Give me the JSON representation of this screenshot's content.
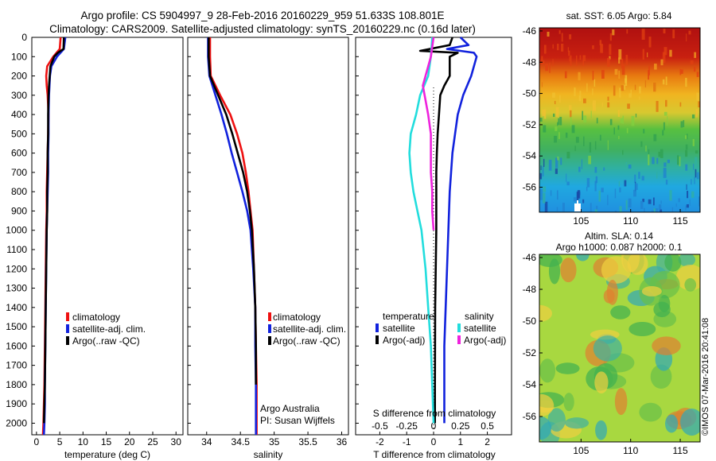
{
  "header": {
    "line1": "Argo profile: CS 5904997_9 28-Feb-2016 20160229_959 51.633S 108.801E",
    "line2": "Climatology: CARS2009. Satellite-adjusted climatology: synTS_20160229.nc (0.16d later)"
  },
  "colors": {
    "climatology": "#ee1111",
    "satellite": "#1122dd",
    "argo": "#000000",
    "s_satellite": "#22dddd",
    "s_argo": "#ee22dd"
  },
  "depth_axis": {
    "ticks": [
      0,
      100,
      200,
      300,
      400,
      500,
      600,
      700,
      800,
      900,
      1000,
      1100,
      1200,
      1300,
      1400,
      1500,
      1600,
      1700,
      1800,
      1900,
      2000
    ],
    "range": [
      0,
      2060
    ]
  },
  "legend": {
    "climatology": "climatology",
    "satellite_adj": "satellite-adj. clim.",
    "argo_raw_qc": "Argo(..raw -QC)",
    "temperature": "temperature",
    "salinity": "salinity",
    "satellite": "satellite",
    "argo_adj": "Argo(-adj)"
  },
  "credits": {
    "line1": "Argo Australia",
    "line2": "PI: Susan Wijffels",
    "imos": "©IMOS 07-Mar-2016 20:41:08"
  },
  "chart_data": [
    {
      "type": "line",
      "panel": "temperature",
      "xlabel": "temperature (deg C)",
      "ylabel": "",
      "xlim": [
        -1,
        31.5
      ],
      "xticks": [
        0,
        5,
        10,
        15,
        20,
        25,
        30
      ],
      "ylim": [
        2060,
        0
      ],
      "series": [
        {
          "name": "climatology",
          "color_key": "climatology",
          "x": [
            5.2,
            5.0,
            3.6,
            2.3,
            2.1,
            2.2,
            2.4,
            2.6,
            2.5,
            2.4,
            2.3,
            2.2,
            2.2,
            2.1,
            2.0,
            1.9,
            1.8,
            1.7,
            1.6,
            1.5,
            1.4
          ],
          "y": [
            0,
            60,
            100,
            150,
            200,
            250,
            300,
            400,
            500,
            600,
            700,
            800,
            900,
            1000,
            1200,
            1400,
            1600,
            1800,
            1900,
            2000,
            2060
          ]
        },
        {
          "name": "satellite-adj. clim.",
          "color_key": "satellite",
          "x": [
            6.2,
            5.9,
            4.4,
            3.2,
            2.9,
            2.8,
            2.7,
            2.6,
            2.6,
            2.5,
            2.5,
            2.4,
            2.3,
            2.2,
            2.1,
            2.0,
            1.9,
            1.8,
            1.8,
            1.7,
            1.6
          ],
          "y": [
            0,
            60,
            100,
            150,
            200,
            250,
            300,
            400,
            500,
            600,
            700,
            800,
            900,
            1000,
            1200,
            1400,
            1600,
            1800,
            1900,
            2000,
            2060
          ]
        },
        {
          "name": "Argo(..raw -QC)",
          "color_key": "argo",
          "x": [
            5.9,
            5.8,
            4.6,
            3.8,
            3.0,
            2.7,
            2.6,
            2.5,
            2.5,
            2.4,
            2.4,
            2.3,
            2.3,
            2.2,
            2.1,
            2.0,
            1.9,
            1.8,
            1.7,
            1.6
          ],
          "y": [
            0,
            60,
            80,
            100,
            150,
            250,
            300,
            400,
            500,
            600,
            700,
            800,
            900,
            1000,
            1200,
            1400,
            1600,
            1800,
            1900,
            2000
          ]
        }
      ]
    },
    {
      "type": "line",
      "panel": "salinity",
      "xlabel": "salinity",
      "ylabel": "",
      "xlim": [
        33.72,
        36.1
      ],
      "xticks": [
        34,
        34.5,
        35,
        35.5,
        36
      ],
      "ylim": [
        2060,
        0
      ],
      "series": [
        {
          "name": "climatology",
          "color_key": "climatology",
          "x": [
            34.05,
            34.05,
            34.06,
            34.2,
            34.35,
            34.45,
            34.53,
            34.58,
            34.62,
            34.65,
            34.68,
            34.7,
            34.72,
            34.73,
            34.74,
            34.74
          ],
          "y": [
            0,
            100,
            200,
            300,
            400,
            500,
            600,
            700,
            800,
            900,
            1000,
            1200,
            1400,
            1600,
            1800,
            2060
          ]
        },
        {
          "name": "satellite-adj. clim.",
          "color_key": "satellite",
          "x": [
            34.02,
            34.02,
            34.04,
            34.13,
            34.22,
            34.3,
            34.37,
            34.45,
            34.53,
            34.6,
            34.65,
            34.69,
            34.72,
            34.72,
            34.73,
            34.73
          ],
          "y": [
            0,
            100,
            200,
            300,
            400,
            500,
            600,
            700,
            800,
            900,
            1000,
            1200,
            1400,
            1600,
            1800,
            2060
          ]
        },
        {
          "name": "Argo(..raw -QC)",
          "color_key": "argo",
          "x": [
            34.03,
            34.03,
            34.05,
            34.17,
            34.29,
            34.38,
            34.46,
            34.54,
            34.6,
            34.64,
            34.67,
            34.7,
            34.72,
            34.73,
            34.73
          ],
          "y": [
            0,
            100,
            200,
            300,
            400,
            500,
            600,
            700,
            800,
            900,
            1000,
            1200,
            1400,
            1600,
            1800
          ]
        }
      ]
    },
    {
      "type": "line",
      "panel": "difference",
      "xlabel": "T difference from climatology",
      "xlabel_top": "S difference from climatology",
      "xlim": [
        -2.9,
        2.9
      ],
      "xticks": [
        -2,
        -1,
        0,
        1,
        2
      ],
      "xticks_S": [
        -0.5,
        -0.25,
        0,
        0.25,
        0.5
      ],
      "ylim": [
        2060,
        0
      ],
      "series": [
        {
          "name": "temperature satellite",
          "color_key": "satellite",
          "x": [
            1.0,
            1.3,
            0.5,
            1.5,
            1.6,
            1.4,
            1.1,
            0.9,
            0.8,
            0.7,
            0.65,
            0.6,
            0.55,
            0.5,
            0.45,
            0.4,
            0.4,
            0.4
          ],
          "y": [
            0,
            40,
            60,
            80,
            100,
            200,
            300,
            400,
            500,
            600,
            700,
            800,
            1000,
            1200,
            1400,
            1600,
            1800,
            2000
          ]
        },
        {
          "name": "temperature Argo(-adj)",
          "color_key": "argo",
          "x": [
            0.7,
            0.6,
            -0.5,
            0.9,
            0.6,
            0.6,
            0.4,
            0.25,
            0.2,
            0.15,
            0.12,
            0.1,
            0.1,
            0.1,
            0.08,
            0.06,
            0.05,
            0.05
          ],
          "y": [
            0,
            40,
            70,
            80,
            100,
            200,
            250,
            300,
            400,
            500,
            600,
            700,
            800,
            1000,
            1200,
            1400,
            1800,
            2000
          ]
        },
        {
          "name": "salinity satellite",
          "color_key": "s_satellite",
          "x": [
            -0.05,
            -0.1,
            -0.2,
            -0.5,
            -0.65,
            -0.85,
            -0.9,
            -0.85,
            -0.75,
            -0.6,
            -0.45,
            -0.3,
            -0.2,
            -0.1,
            -0.05,
            0.0
          ],
          "y": [
            0,
            100,
            200,
            300,
            400,
            500,
            600,
            700,
            800,
            900,
            1000,
            1200,
            1400,
            1600,
            1800,
            2000
          ]
        },
        {
          "name": "salinity Argo(-adj)",
          "color_key": "s_argo",
          "x": [
            0.0,
            -0.1,
            -0.4,
            -0.2,
            -0.1,
            -0.1,
            -0.1,
            -0.05,
            -0.05,
            0.0
          ],
          "y": [
            0,
            100,
            250,
            400,
            500,
            600,
            700,
            800,
            900,
            1000
          ]
        }
      ]
    },
    {
      "type": "heatmap",
      "panel": "sst_map",
      "title": "sat. SST: 6.05  Argo: 5.84",
      "xticks": [
        105,
        110,
        115
      ],
      "yticks": [
        -46,
        -48,
        -50,
        -52,
        -54,
        -56
      ],
      "xlim": [
        100.8,
        117
      ],
      "ylim": [
        -57.6,
        -45.8
      ]
    },
    {
      "type": "heatmap",
      "panel": "sla_map",
      "title1": "Altim. SLA: 0.14",
      "title2": "Argo h1000: 0.087 h2000: 0.1",
      "xticks": [
        105,
        110,
        115
      ],
      "yticks": [
        -46,
        -48,
        -50,
        -52,
        -54,
        -56
      ],
      "xlim": [
        100.8,
        117
      ],
      "ylim": [
        -57.6,
        -45.8
      ]
    }
  ]
}
